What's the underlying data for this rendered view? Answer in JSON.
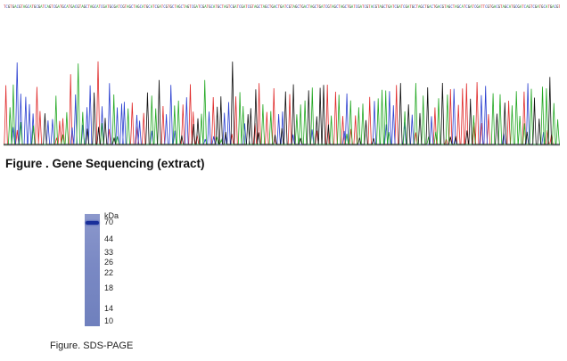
{
  "sequence_strip": {
    "text": "TCGTGACGTAGCATGCGATCAGTCGATGCATGACGTAGCTAGCATCGATGCGATCGTAGCTAGCATGCATCGATCGTGCTAGCTAGTCGATCGATGCATGCTAGTCGATCGATCGTAGCTAGCTGACTGATCGTAGCTGACTAGCTGATCGTAGCTAGCTGATCGATCGTACGTAGCTGATCGATCGATGCTAGCTGACTGACGTAGCTAGCATCGATCGAT",
    "colors": {
      "A": "#2aa02a",
      "C": "#2a3fd0",
      "G": "#111111",
      "T": "#d02a2a"
    }
  },
  "chromatogram": {
    "trace_colors": {
      "A": "#22a822",
      "C": "#2a3fd0",
      "G": "#111111",
      "T": "#e02a2a"
    },
    "baseline_color": "#9a9a9a"
  },
  "gene_caption": "Figure . Gene Sequencing (extract)",
  "gel": {
    "unit_label": "kDa",
    "markers": [
      {
        "label": "70",
        "position": 0.07
      },
      {
        "label": "44",
        "position": 0.22
      },
      {
        "label": "33",
        "position": 0.34
      },
      {
        "label": "26",
        "position": 0.43
      },
      {
        "label": "22",
        "position": 0.52
      },
      {
        "label": "18",
        "position": 0.66
      },
      {
        "label": "14",
        "position": 0.84
      },
      {
        "label": "10",
        "position": 0.95
      }
    ],
    "band_kda": "70",
    "lane_color": "#7a89c4",
    "band_color": "#1a2f9a"
  },
  "sds_caption": "Figure. SDS-PAGE"
}
